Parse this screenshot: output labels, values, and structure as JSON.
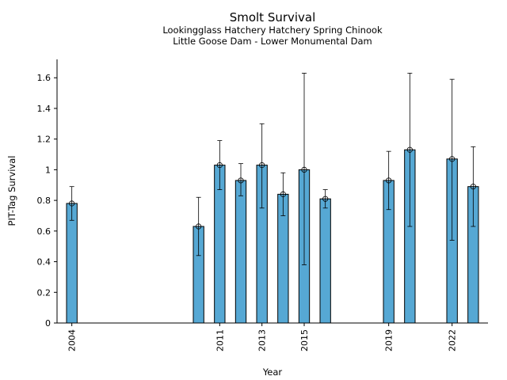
{
  "chart_data": {
    "type": "bar",
    "title": "Smolt Survival",
    "subtitle_lines": [
      "Lookingglass Hatchery Hatchery Spring Chinook",
      "Little Goose Dam - Lower Monumental Dam"
    ],
    "xlabel": "Year",
    "ylabel": "PIT-Tag Survival",
    "xlim": [
      2003.3,
      2023.7
    ],
    "ylim": [
      0,
      1.72
    ],
    "x_ticks": [
      2004,
      2011,
      2013,
      2015,
      2019,
      2022
    ],
    "y_ticks": [
      {
        "value": 0,
        "label": "0"
      },
      {
        "value": 0.2,
        "label": "0.2"
      },
      {
        "value": 0.4,
        "label": "0.4"
      },
      {
        "value": 0.6,
        "label": "0.6"
      },
      {
        "value": 0.8,
        "label": "0.8"
      },
      {
        "value": 1.0,
        "label": "1"
      },
      {
        "value": 1.2,
        "label": "1.2"
      },
      {
        "value": 1.4,
        "label": "1.4"
      },
      {
        "value": 1.6,
        "label": "1.6"
      }
    ],
    "bar_color": "#56a8d4",
    "grid": false,
    "points": [
      {
        "year": 2004,
        "value": 0.78,
        "lower": 0.67,
        "upper": 0.89
      },
      {
        "year": 2010,
        "value": 0.63,
        "lower": 0.44,
        "upper": 0.82
      },
      {
        "year": 2011,
        "value": 1.03,
        "lower": 0.87,
        "upper": 1.19
      },
      {
        "year": 2012,
        "value": 0.93,
        "lower": 0.83,
        "upper": 1.04
      },
      {
        "year": 2013,
        "value": 1.03,
        "lower": 0.75,
        "upper": 1.3
      },
      {
        "year": 2014,
        "value": 0.84,
        "lower": 0.7,
        "upper": 0.98
      },
      {
        "year": 2015,
        "value": 1.0,
        "lower": 0.38,
        "upper": 1.63
      },
      {
        "year": 2016,
        "value": 0.81,
        "lower": 0.75,
        "upper": 0.87
      },
      {
        "year": 2019,
        "value": 0.93,
        "lower": 0.74,
        "upper": 1.12
      },
      {
        "year": 2020,
        "value": 1.13,
        "lower": 0.63,
        "upper": 1.63
      },
      {
        "year": 2022,
        "value": 1.07,
        "lower": 0.54,
        "upper": 1.59
      },
      {
        "year": 2023,
        "value": 0.89,
        "lower": 0.63,
        "upper": 1.15
      }
    ]
  }
}
